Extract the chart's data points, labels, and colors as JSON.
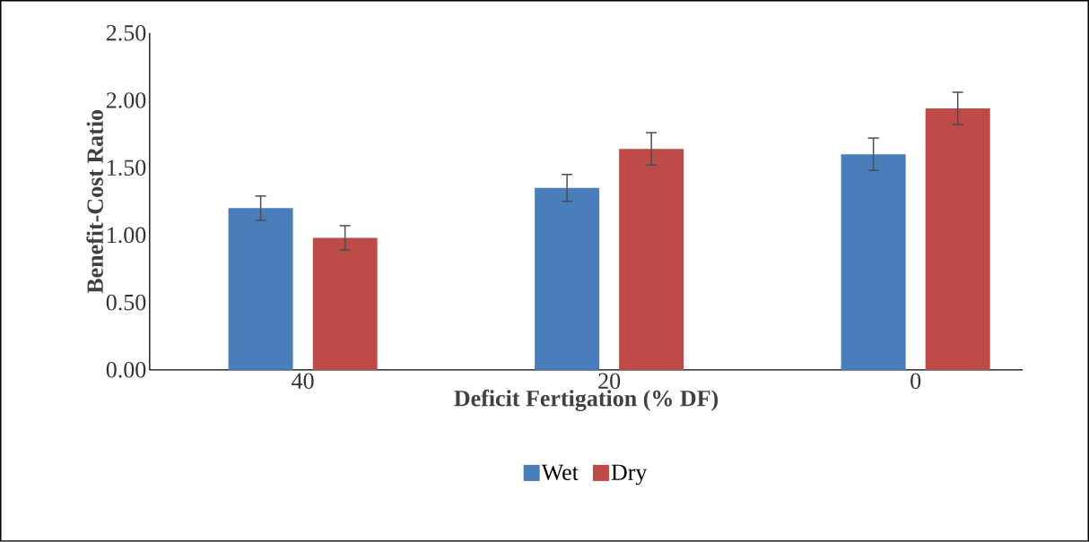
{
  "chart_data": {
    "type": "bar",
    "xlabel": "Deficit Fertigation (% DF)",
    "ylabel": "Benefit-Cost Ratio",
    "categories": [
      "40",
      "20",
      "0"
    ],
    "series": [
      {
        "name": "Wet",
        "color": "#4a7ebb",
        "values": [
          1.2,
          1.35,
          1.6
        ],
        "errors": [
          0.09,
          0.1,
          0.12
        ]
      },
      {
        "name": "Dry",
        "color": "#be4b48",
        "values": [
          0.98,
          1.64,
          1.94
        ],
        "errors": [
          0.09,
          0.12,
          0.12
        ]
      }
    ],
    "ylim": [
      0,
      2.5
    ],
    "yticks": [
      {
        "value": 0,
        "label": "0.00"
      },
      {
        "value": 0.5,
        "label": "0.50"
      },
      {
        "value": 1,
        "label": "1.00"
      },
      {
        "value": 1.5,
        "label": "1.50"
      },
      {
        "value": 2,
        "label": "2.00"
      },
      {
        "value": 2.5,
        "label": "2.50"
      }
    ],
    "legend": "bottom"
  }
}
